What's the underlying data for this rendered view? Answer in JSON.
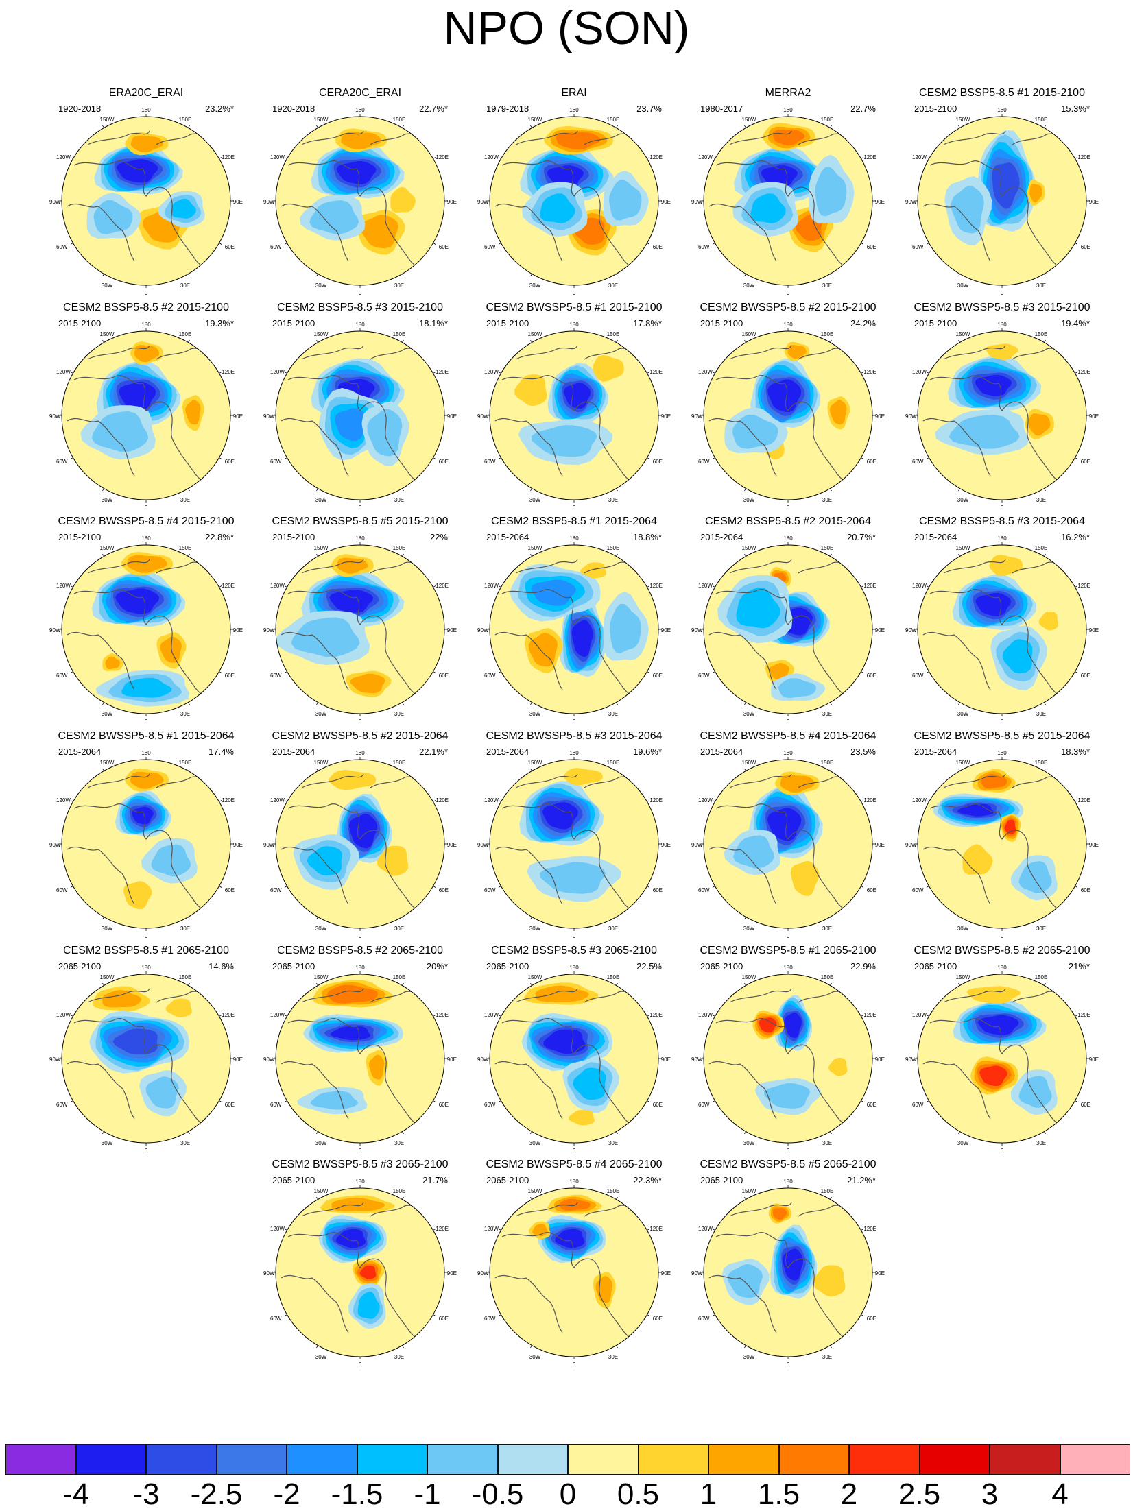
{
  "title": "NPO (SON)",
  "map_labels": {
    "top": "180",
    "top_left": "150W",
    "top_right": "150E",
    "upper_left": "120W",
    "upper_right": "120E",
    "left": "90W",
    "right": "90E",
    "lower_left": "60W",
    "lower_right": "60E",
    "bottom_left": "30W",
    "bottom_right": "30E",
    "bottom": "0"
  },
  "colorbar": {
    "colors": [
      "#8a2be2",
      "#1e1ef0",
      "#2e4de6",
      "#3c78e8",
      "#1e90ff",
      "#00bfff",
      "#6ec8f5",
      "#b0dff2",
      "#fff59d",
      "#ffd42e",
      "#ffa500",
      "#ff7a00",
      "#ff2e0a",
      "#e60000",
      "#c81e1e",
      "#ffb0b8"
    ],
    "labels": [
      "-4",
      "-3",
      "-2.5",
      "-2",
      "-1.5",
      "-1",
      "-0.5",
      "0",
      "0.5",
      "1",
      "1.5",
      "2",
      "2.5",
      "3",
      "4"
    ]
  },
  "panels": [
    {
      "title": "ERA20C_ERAI",
      "period": "1920-2018",
      "variance": "23.2%*",
      "pattern": [
        [
          0.45,
          0.32,
          -3.5,
          0.19,
          0.11
        ],
        [
          0.5,
          0.16,
          1.2,
          0.12,
          0.06
        ],
        [
          0.6,
          0.65,
          1.2,
          0.14,
          0.12
        ],
        [
          0.72,
          0.55,
          -1.0,
          0.1,
          0.08
        ],
        [
          0.3,
          0.6,
          -0.7,
          0.12,
          0.1
        ]
      ]
    },
    {
      "title": "CERA20C_ERAI",
      "period": "1920-2018",
      "variance": "22.7%*",
      "pattern": [
        [
          0.48,
          0.33,
          -3.2,
          0.2,
          0.12
        ],
        [
          0.5,
          0.14,
          1.4,
          0.14,
          0.06
        ],
        [
          0.62,
          0.68,
          1.3,
          0.13,
          0.12
        ],
        [
          0.35,
          0.6,
          -0.8,
          0.14,
          0.1
        ],
        [
          0.75,
          0.5,
          0.6,
          0.08,
          0.08
        ]
      ]
    },
    {
      "title": "ERAI",
      "period": "1979-2018",
      "variance": "23.7%",
      "pattern": [
        [
          0.45,
          0.35,
          -3.0,
          0.2,
          0.12
        ],
        [
          0.52,
          0.14,
          1.8,
          0.18,
          0.07
        ],
        [
          0.6,
          0.68,
          1.6,
          0.13,
          0.12
        ],
        [
          0.4,
          0.55,
          -1.0,
          0.14,
          0.12
        ],
        [
          0.8,
          0.5,
          -0.7,
          0.1,
          0.12
        ]
      ]
    },
    {
      "title": "MERRA2",
      "period": "1980-2017",
      "variance": "22.7%",
      "pattern": [
        [
          0.45,
          0.35,
          -3.0,
          0.2,
          0.12
        ],
        [
          0.5,
          0.12,
          1.6,
          0.14,
          0.07
        ],
        [
          0.63,
          0.66,
          1.5,
          0.12,
          0.12
        ],
        [
          0.38,
          0.55,
          -1.0,
          0.14,
          0.12
        ],
        [
          0.75,
          0.45,
          -0.6,
          0.1,
          0.15
        ]
      ]
    },
    {
      "title": "CESM2 BSSP5-8.5 #1 2015-2100",
      "period": "2015-2100",
      "variance": "15.3%*",
      "pattern": [
        [
          0.52,
          0.4,
          -2.8,
          0.13,
          0.22
        ],
        [
          0.7,
          0.45,
          1.1,
          0.05,
          0.07
        ],
        [
          0.3,
          0.55,
          -0.6,
          0.1,
          0.15
        ],
        [
          0.5,
          0.12,
          0.3,
          0.1,
          0.06
        ]
      ]
    },
    {
      "title": "CESM2 BSSP5-8.5 #2 2015-2100",
      "period": "2015-2100",
      "variance": "19.3%*",
      "pattern": [
        [
          0.45,
          0.38,
          -3.3,
          0.18,
          0.14
        ],
        [
          0.5,
          0.13,
          1.3,
          0.09,
          0.06
        ],
        [
          0.78,
          0.48,
          1.0,
          0.06,
          0.1
        ],
        [
          0.35,
          0.6,
          -0.8,
          0.16,
          0.12
        ]
      ]
    },
    {
      "title": "CESM2 BSSP5-8.5 #3 2015-2100",
      "period": "2015-2100",
      "variance": "18.1%*",
      "pattern": [
        [
          0.48,
          0.35,
          -3.0,
          0.2,
          0.13
        ],
        [
          0.45,
          0.55,
          -1.5,
          0.15,
          0.15
        ],
        [
          0.65,
          0.6,
          -0.8,
          0.1,
          0.14
        ]
      ]
    },
    {
      "title": "CESM2 BWSSP5-8.5 #1 2015-2100",
      "period": "2015-2100",
      "variance": "17.8%*",
      "pattern": [
        [
          0.52,
          0.38,
          -3.3,
          0.13,
          0.13
        ],
        [
          0.7,
          0.22,
          0.6,
          0.1,
          0.08
        ],
        [
          0.45,
          0.65,
          -0.6,
          0.2,
          0.1
        ],
        [
          0.25,
          0.35,
          0.6,
          0.1,
          0.1
        ]
      ]
    },
    {
      "title": "CESM2 BWSSP5-8.5 #2 2015-2100",
      "period": "2015-2100",
      "variance": "24.2%",
      "pattern": [
        [
          0.48,
          0.38,
          -3.6,
          0.15,
          0.15
        ],
        [
          0.55,
          0.12,
          1.2,
          0.07,
          0.05
        ],
        [
          0.8,
          0.48,
          1.2,
          0.06,
          0.09
        ],
        [
          0.42,
          0.68,
          0.9,
          0.06,
          0.08
        ],
        [
          0.3,
          0.6,
          -0.7,
          0.14,
          0.1
        ]
      ]
    },
    {
      "title": "CESM2 BWSSP5-8.5 #3 2015-2100",
      "period": "2015-2100",
      "variance": "19.4%*",
      "pattern": [
        [
          0.45,
          0.32,
          -3.0,
          0.2,
          0.12
        ],
        [
          0.72,
          0.55,
          1.2,
          0.08,
          0.08
        ],
        [
          0.5,
          0.12,
          0.6,
          0.1,
          0.05
        ],
        [
          0.4,
          0.6,
          -0.8,
          0.2,
          0.1
        ]
      ]
    },
    {
      "title": "CESM2 BWSSP5-8.5 #4 2015-2100",
      "period": "2015-2100",
      "variance": "22.8%*",
      "pattern": [
        [
          0.45,
          0.33,
          -3.5,
          0.2,
          0.12
        ],
        [
          0.5,
          0.11,
          1.4,
          0.14,
          0.06
        ],
        [
          0.65,
          0.62,
          1.1,
          0.08,
          0.1
        ],
        [
          0.5,
          0.85,
          -1.0,
          0.2,
          0.08
        ],
        [
          0.3,
          0.7,
          1.0,
          0.06,
          0.05
        ]
      ]
    },
    {
      "title": "CESM2 BWSSP5-8.5 #5 2015-2100",
      "period": "2015-2100",
      "variance": "22%",
      "pattern": [
        [
          0.45,
          0.33,
          -3.2,
          0.22,
          0.12
        ],
        [
          0.45,
          0.12,
          1.1,
          0.12,
          0.06
        ],
        [
          0.55,
          0.82,
          1.3,
          0.12,
          0.07
        ],
        [
          0.3,
          0.55,
          -0.7,
          0.2,
          0.12
        ]
      ]
    },
    {
      "title": "CESM2 BSSP5-8.5 #1 2015-2064",
      "period": "2015-2064",
      "variance": "18.8%*",
      "pattern": [
        [
          0.55,
          0.55,
          -3.4,
          0.1,
          0.18
        ],
        [
          0.38,
          0.28,
          -1.5,
          0.2,
          0.12
        ],
        [
          0.32,
          0.62,
          1.3,
          0.1,
          0.12
        ],
        [
          0.62,
          0.15,
          0.6,
          0.08,
          0.05
        ],
        [
          0.8,
          0.5,
          -0.6,
          0.1,
          0.15
        ]
      ]
    },
    {
      "title": "CESM2 BSSP5-8.5 #2 2015-2064",
      "period": "2015-2064",
      "variance": "20.7%*",
      "pattern": [
        [
          0.55,
          0.45,
          -3.8,
          0.14,
          0.12
        ],
        [
          0.45,
          0.2,
          1.5,
          0.06,
          0.06
        ],
        [
          0.45,
          0.75,
          1.0,
          0.08,
          0.07
        ],
        [
          0.32,
          0.38,
          -1.2,
          0.16,
          0.15
        ],
        [
          0.55,
          0.85,
          -0.6,
          0.12,
          0.06
        ]
      ]
    },
    {
      "title": "CESM2 BSSP5-8.5 #3 2015-2064",
      "period": "2015-2064",
      "variance": "16.2%*",
      "pattern": [
        [
          0.45,
          0.35,
          -3.2,
          0.18,
          0.12
        ],
        [
          0.52,
          0.12,
          0.8,
          0.1,
          0.06
        ],
        [
          0.6,
          0.66,
          -1.0,
          0.12,
          0.14
        ],
        [
          0.78,
          0.45,
          0.6,
          0.06,
          0.06
        ]
      ]
    },
    {
      "title": "CESM2 BWSSP5-8.5 #1 2015-2064",
      "period": "2015-2064",
      "variance": "17.4%",
      "pattern": [
        [
          0.48,
          0.33,
          -3.0,
          0.12,
          0.1
        ],
        [
          0.5,
          0.12,
          1.3,
          0.12,
          0.06
        ],
        [
          0.45,
          0.8,
          0.9,
          0.08,
          0.08
        ],
        [
          0.65,
          0.6,
          -0.6,
          0.12,
          0.1
        ]
      ]
    },
    {
      "title": "CESM2 BWSSP5-8.5 #2 2015-2064",
      "period": "2015-2064",
      "variance": "22.1%*",
      "pattern": [
        [
          0.52,
          0.42,
          -3.8,
          0.12,
          0.15
        ],
        [
          0.45,
          0.12,
          0.6,
          0.15,
          0.06
        ],
        [
          0.3,
          0.6,
          -1.0,
          0.14,
          0.12
        ],
        [
          0.7,
          0.6,
          0.5,
          0.1,
          0.1
        ]
      ]
    },
    {
      "title": "CESM2 BWSSP5-8.5 #3 2015-2064",
      "period": "2015-2064",
      "variance": "19.6%*",
      "pattern": [
        [
          0.42,
          0.33,
          -3.2,
          0.18,
          0.14
        ],
        [
          0.55,
          0.1,
          0.7,
          0.12,
          0.05
        ],
        [
          0.5,
          0.7,
          -0.6,
          0.2,
          0.1
        ],
        [
          0.8,
          0.45,
          0.4,
          0.06,
          0.1
        ]
      ]
    },
    {
      "title": "CESM2 BWSSP5-8.5 #4 2015-2064",
      "period": "2015-2064",
      "variance": "23.5%",
      "pattern": [
        [
          0.48,
          0.38,
          -3.4,
          0.16,
          0.16
        ],
        [
          0.55,
          0.14,
          1.4,
          0.12,
          0.06
        ],
        [
          0.6,
          0.7,
          0.9,
          0.08,
          0.1
        ],
        [
          0.3,
          0.55,
          -0.7,
          0.12,
          0.1
        ]
      ]
    },
    {
      "title": "CESM2 BWSSP5-8.5 #5 2015-2064",
      "period": "2015-2064",
      "variance": "18.3%*",
      "pattern": [
        [
          0.45,
          0.13,
          1.7,
          0.11,
          0.06
        ],
        [
          0.35,
          0.3,
          -3.0,
          0.2,
          0.07
        ],
        [
          0.55,
          0.4,
          2.2,
          0.05,
          0.07
        ],
        [
          0.7,
          0.7,
          -0.6,
          0.1,
          0.1
        ],
        [
          0.35,
          0.6,
          0.5,
          0.1,
          0.1
        ]
      ]
    },
    {
      "title": "CESM2 BSSP5-8.5 #1 2065-2100",
      "period": "2065-2100",
      "variance": "14.6%",
      "pattern": [
        [
          0.35,
          0.15,
          1.0,
          0.16,
          0.07
        ],
        [
          0.45,
          0.4,
          -2.7,
          0.22,
          0.13
        ],
        [
          0.6,
          0.7,
          -0.6,
          0.1,
          0.1
        ],
        [
          0.7,
          0.2,
          0.6,
          0.08,
          0.06
        ]
      ]
    },
    {
      "title": "CESM2 BSSP5-8.5 #2 2065-2100",
      "period": "2065-2100",
      "variance": "20%*",
      "pattern": [
        [
          0.45,
          0.12,
          1.9,
          0.2,
          0.07
        ],
        [
          0.45,
          0.35,
          -3.0,
          0.22,
          0.08
        ],
        [
          0.6,
          0.55,
          1.0,
          0.06,
          0.1
        ],
        [
          0.35,
          0.75,
          -0.5,
          0.15,
          0.06
        ]
      ]
    },
    {
      "title": "CESM2 BSSP5-8.5 #3 2065-2100",
      "period": "2065-2100",
      "variance": "22.5%",
      "pattern": [
        [
          0.42,
          0.12,
          1.2,
          0.2,
          0.06
        ],
        [
          0.45,
          0.4,
          -3.4,
          0.2,
          0.12
        ],
        [
          0.6,
          0.65,
          -1.2,
          0.12,
          0.12
        ],
        [
          0.55,
          0.85,
          0.6,
          0.08,
          0.05
        ]
      ]
    },
    {
      "title": "CESM2 BWSSP5-8.5 #1 2065-2100",
      "period": "2065-2100",
      "variance": "22.9%",
      "pattern": [
        [
          0.53,
          0.3,
          -3.5,
          0.08,
          0.12
        ],
        [
          0.38,
          0.3,
          2.2,
          0.08,
          0.07
        ],
        [
          0.5,
          0.72,
          -0.6,
          0.14,
          0.08
        ],
        [
          0.8,
          0.55,
          0.5,
          0.06,
          0.06
        ]
      ]
    },
    {
      "title": "CESM2 BWSSP5-8.5 #2 2065-2100",
      "period": "2065-2100",
      "variance": "21%*",
      "pattern": [
        [
          0.48,
          0.3,
          -3.3,
          0.2,
          0.1
        ],
        [
          0.45,
          0.6,
          2.3,
          0.12,
          0.09
        ],
        [
          0.45,
          0.12,
          0.9,
          0.15,
          0.05
        ],
        [
          0.7,
          0.7,
          -0.6,
          0.1,
          0.1
        ]
      ]
    },
    {
      "title": "CESM2 BWSSP5-8.5 #3 2065-2100",
      "period": "2065-2100",
      "variance": "21.7%",
      "pattern": [
        [
          0.48,
          0.1,
          1.2,
          0.2,
          0.05
        ],
        [
          0.45,
          0.3,
          -3.2,
          0.15,
          0.1
        ],
        [
          0.55,
          0.5,
          2.0,
          0.08,
          0.07
        ],
        [
          0.55,
          0.7,
          -1.2,
          0.08,
          0.1
        ]
      ]
    },
    {
      "title": "CESM2 BWSSP5-8.5 #4 2065-2100",
      "period": "2065-2100",
      "variance": "22.3%*",
      "pattern": [
        [
          0.5,
          0.1,
          1.6,
          0.14,
          0.05
        ],
        [
          0.48,
          0.3,
          -3.2,
          0.15,
          0.1
        ],
        [
          0.68,
          0.6,
          1.2,
          0.06,
          0.1
        ],
        [
          0.3,
          0.25,
          1.0,
          0.06,
          0.05
        ]
      ]
    },
    {
      "title": "CESM2 BWSSP5-8.5 #5 2065-2100",
      "period": "2065-2100",
      "variance": "21.2%*",
      "pattern": [
        [
          0.53,
          0.45,
          -3.3,
          0.1,
          0.16
        ],
        [
          0.45,
          0.15,
          1.7,
          0.06,
          0.05
        ],
        [
          0.25,
          0.55,
          -0.8,
          0.1,
          0.1
        ],
        [
          0.75,
          0.55,
          0.6,
          0.1,
          0.1
        ]
      ]
    }
  ]
}
